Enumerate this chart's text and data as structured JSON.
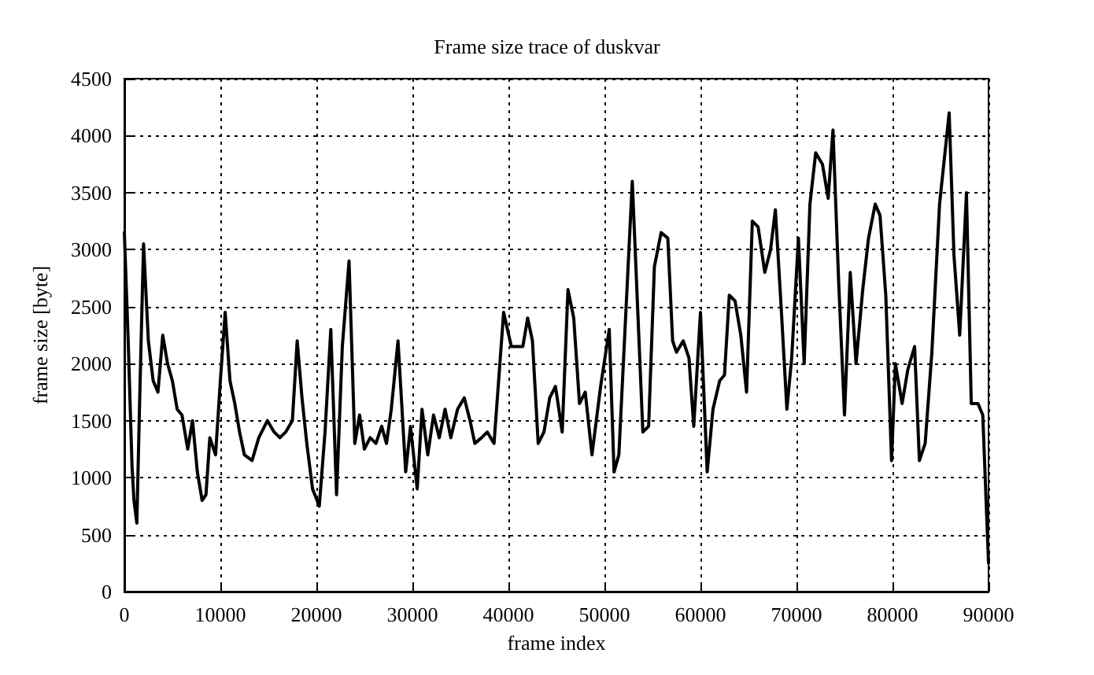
{
  "chart_data": {
    "type": "line",
    "title": "Frame size trace of duskvar",
    "xlabel": "frame index",
    "ylabel": "frame size [byte]",
    "xlim": [
      0,
      90000
    ],
    "xticks": [
      0,
      10000,
      20000,
      30000,
      40000,
      50000,
      60000,
      70000,
      80000,
      90000
    ],
    "ylim": [
      0,
      4500
    ],
    "yticks": [
      0,
      500,
      1000,
      1500,
      2000,
      2500,
      3000,
      3500,
      4000,
      4500
    ],
    "grid": true,
    "marker": "none",
    "line_style": "solid",
    "series": [
      {
        "color": "#000000",
        "x": [
          0,
          400,
          800,
          1000,
          1300,
          1600,
          2000,
          2500,
          3000,
          3500,
          4000,
          4500,
          5000,
          5500,
          6000,
          6600,
          7100,
          7600,
          8100,
          8500,
          8900,
          9500,
          10000,
          10500,
          11000,
          11500,
          12000,
          12500,
          13300,
          14000,
          14900,
          15600,
          16200,
          16800,
          17500,
          18000,
          18500,
          19000,
          19600,
          20300,
          20900,
          21500,
          22100,
          22700,
          23400,
          24000,
          24500,
          25000,
          25600,
          26200,
          26800,
          27300,
          27800,
          28500,
          29300,
          29800,
          30500,
          31000,
          31600,
          32200,
          32800,
          33400,
          34000,
          34700,
          35400,
          36000,
          36500,
          37200,
          37800,
          38500,
          39500,
          40300,
          41500,
          42000,
          42500,
          43100,
          43700,
          44300,
          44900,
          45600,
          46200,
          46800,
          47400,
          48000,
          48700,
          49600,
          50500,
          51000,
          51500,
          52900,
          54000,
          54600,
          55200,
          55900,
          56600,
          57100,
          57500,
          58200,
          58800,
          59300,
          60000,
          60700,
          61300,
          62000,
          62500,
          63000,
          63600,
          64200,
          64800,
          65400,
          66000,
          66700,
          67300,
          67800,
          68400,
          69000,
          69500,
          70200,
          70800,
          71400,
          72000,
          72700,
          73300,
          73800,
          74400,
          75000,
          75600,
          76200,
          76900,
          77500,
          78200,
          78700,
          79300,
          79900,
          80300,
          81000,
          81600,
          82300,
          82800,
          83400,
          84100,
          84900,
          85900,
          86400,
          87000,
          87700,
          88200,
          88900,
          89400,
          90000
        ],
        "values": [
          3150,
          2200,
          1100,
          800,
          600,
          1700,
          3050,
          2200,
          1850,
          1750,
          2250,
          2000,
          1850,
          1600,
          1550,
          1250,
          1500,
          1050,
          800,
          850,
          1350,
          1200,
          1850,
          2450,
          1850,
          1650,
          1400,
          1200,
          1150,
          1350,
          1500,
          1400,
          1350,
          1400,
          1500,
          2200,
          1700,
          1300,
          900,
          750,
          1400,
          2300,
          850,
          2150,
          2900,
          1300,
          1550,
          1250,
          1350,
          1300,
          1450,
          1300,
          1600,
          2200,
          1050,
          1450,
          900,
          1600,
          1200,
          1550,
          1350,
          1600,
          1350,
          1600,
          1700,
          1500,
          1300,
          1350,
          1400,
          1300,
          2450,
          2150,
          2150,
          2400,
          2200,
          1300,
          1400,
          1700,
          1800,
          1400,
          2650,
          2400,
          1650,
          1750,
          1200,
          1800,
          2300,
          1050,
          1200,
          3600,
          1400,
          1450,
          2850,
          3150,
          3100,
          2200,
          2100,
          2200,
          2050,
          1450,
          2450,
          1050,
          1600,
          1850,
          1900,
          2600,
          2550,
          2250,
          1750,
          3250,
          3200,
          2800,
          3000,
          3350,
          2500,
          1600,
          2050,
          3100,
          2000,
          3400,
          3850,
          3750,
          3450,
          4050,
          2700,
          1550,
          2800,
          2000,
          2650,
          3100,
          3400,
          3300,
          2600,
          1150,
          2000,
          1650,
          1950,
          2150,
          1150,
          1300,
          2100,
          3400,
          4200,
          2950,
          2250,
          3500,
          1650,
          1650,
          1550,
          250
        ]
      }
    ]
  }
}
